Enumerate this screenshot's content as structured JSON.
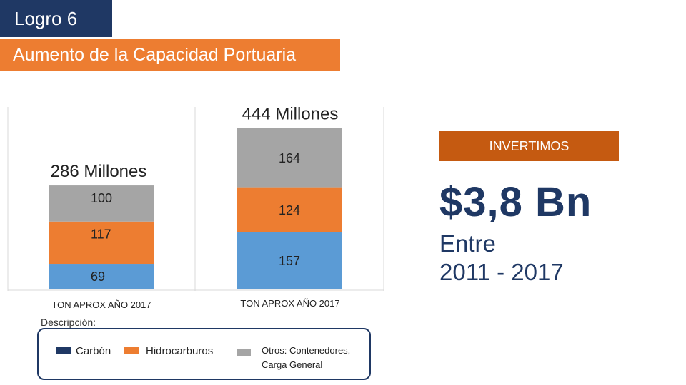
{
  "header": {
    "logro": "Logro 6",
    "subtitle": "Aumento de la Capacidad Portuaria"
  },
  "colors": {
    "header_bg": "#1f3864",
    "subtitle_bg": "#ed7d31",
    "invest_bg": "#c55a11",
    "carbon": "#5b9bd5",
    "hidrocarburos": "#ed7d31",
    "otros": "#a5a5a5"
  },
  "chart_data": {
    "type": "bar",
    "stacked": true,
    "categories": [
      "TON APROX AÑO 2017",
      "TON APROX AÑO 2017"
    ],
    "series": [
      {
        "name": "Carbón",
        "values": [
          69,
          157
        ]
      },
      {
        "name": "Hidrocarburos",
        "values": [
          117,
          124
        ]
      },
      {
        "name": "Otros: Contenedores, Carga General",
        "values": [
          100,
          164
        ]
      }
    ],
    "totals": [
      "286 Millones",
      "444 Millones"
    ],
    "ylim": [
      0,
      444
    ]
  },
  "invest": {
    "label": "INVERTIMOS",
    "amount": "$3,8 Bn",
    "period_line1": "Entre",
    "period_line2": "2011 - 2017"
  },
  "legend": {
    "title": "Descripción:",
    "items": [
      "Carbón",
      "Hidrocarburos",
      "Otros: Contenedores,",
      "Carga General"
    ]
  }
}
